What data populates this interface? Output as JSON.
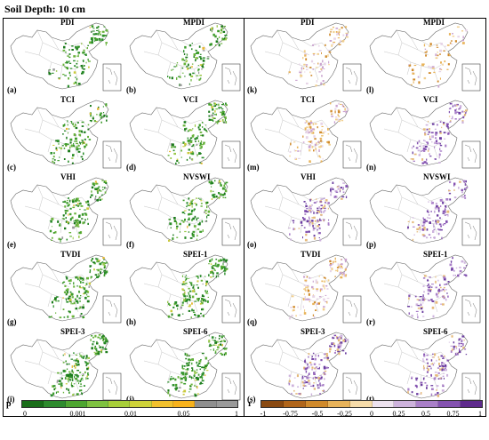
{
  "title": "Soil Depth: 10 cm",
  "left_panels": [
    {
      "name": "PDI",
      "label": "(a)",
      "scheme": "p",
      "density": 0.55
    },
    {
      "name": "MPDI",
      "label": "(b)",
      "scheme": "p",
      "density": 0.5
    },
    {
      "name": "TCI",
      "label": "(c)",
      "scheme": "p",
      "density": 0.6
    },
    {
      "name": "VCI",
      "label": "(d)",
      "scheme": "p",
      "density": 0.65
    },
    {
      "name": "VHI",
      "label": "(e)",
      "scheme": "p",
      "density": 0.7
    },
    {
      "name": "NVSWI",
      "label": "(f)",
      "scheme": "p",
      "density": 0.6
    },
    {
      "name": "TVDI",
      "label": "(g)",
      "scheme": "p",
      "density": 0.7
    },
    {
      "name": "SPEI-1",
      "label": "(h)",
      "scheme": "p",
      "density": 0.75
    },
    {
      "name": "SPEI-3",
      "label": "(i)",
      "scheme": "p",
      "density": 0.85
    },
    {
      "name": "SPEI-6",
      "label": "(j)",
      "scheme": "p",
      "density": 0.8
    }
  ],
  "right_panels": [
    {
      "name": "PDI",
      "label": "(k)",
      "scheme": "r_pos",
      "density": 0.4
    },
    {
      "name": "MPDI",
      "label": "(l)",
      "scheme": "r_pos",
      "density": 0.3
    },
    {
      "name": "TCI",
      "label": "(m)",
      "scheme": "r_pos",
      "density": 0.5
    },
    {
      "name": "VCI",
      "label": "(n)",
      "scheme": "r_neg",
      "density": 0.55
    },
    {
      "name": "VHI",
      "label": "(o)",
      "scheme": "r_neg",
      "density": 0.6
    },
    {
      "name": "NVSWI",
      "label": "(p)",
      "scheme": "r_neg",
      "density": 0.5
    },
    {
      "name": "TVDI",
      "label": "(q)",
      "scheme": "r_pos",
      "density": 0.55
    },
    {
      "name": "SPEI-1",
      "label": "(r)",
      "scheme": "r_neg",
      "density": 0.5
    },
    {
      "name": "SPEI-3",
      "label": "(s)",
      "scheme": "r_neg",
      "density": 0.65
    },
    {
      "name": "SPEI-6",
      "label": "(t)",
      "scheme": "r_neg",
      "density": 0.6
    }
  ],
  "legend_p": {
    "symbol": "p",
    "ticks": [
      "0",
      "0.001",
      "0.01",
      "0.05",
      "1"
    ],
    "colors": [
      "#1a6e1a",
      "#2e8b2e",
      "#4ea631",
      "#7fc241",
      "#a8cf3a",
      "#cfd33a",
      "#f2c12e",
      "#f7b21c",
      "#8f8f8f",
      "#9a9a9a"
    ]
  },
  "legend_r": {
    "symbol": "r",
    "ticks": [
      "-1",
      "-0.75",
      "-0.5",
      "-0.25",
      "0",
      "0.25",
      "0.5",
      "0.75",
      "1"
    ],
    "colors": [
      "#8a4a12",
      "#b0651a",
      "#d08a2c",
      "#e8b35a",
      "#f6dcaa",
      "#ede2ef",
      "#cdb2dc",
      "#a97fc8",
      "#8452b0",
      "#5e2a8c"
    ]
  }
}
